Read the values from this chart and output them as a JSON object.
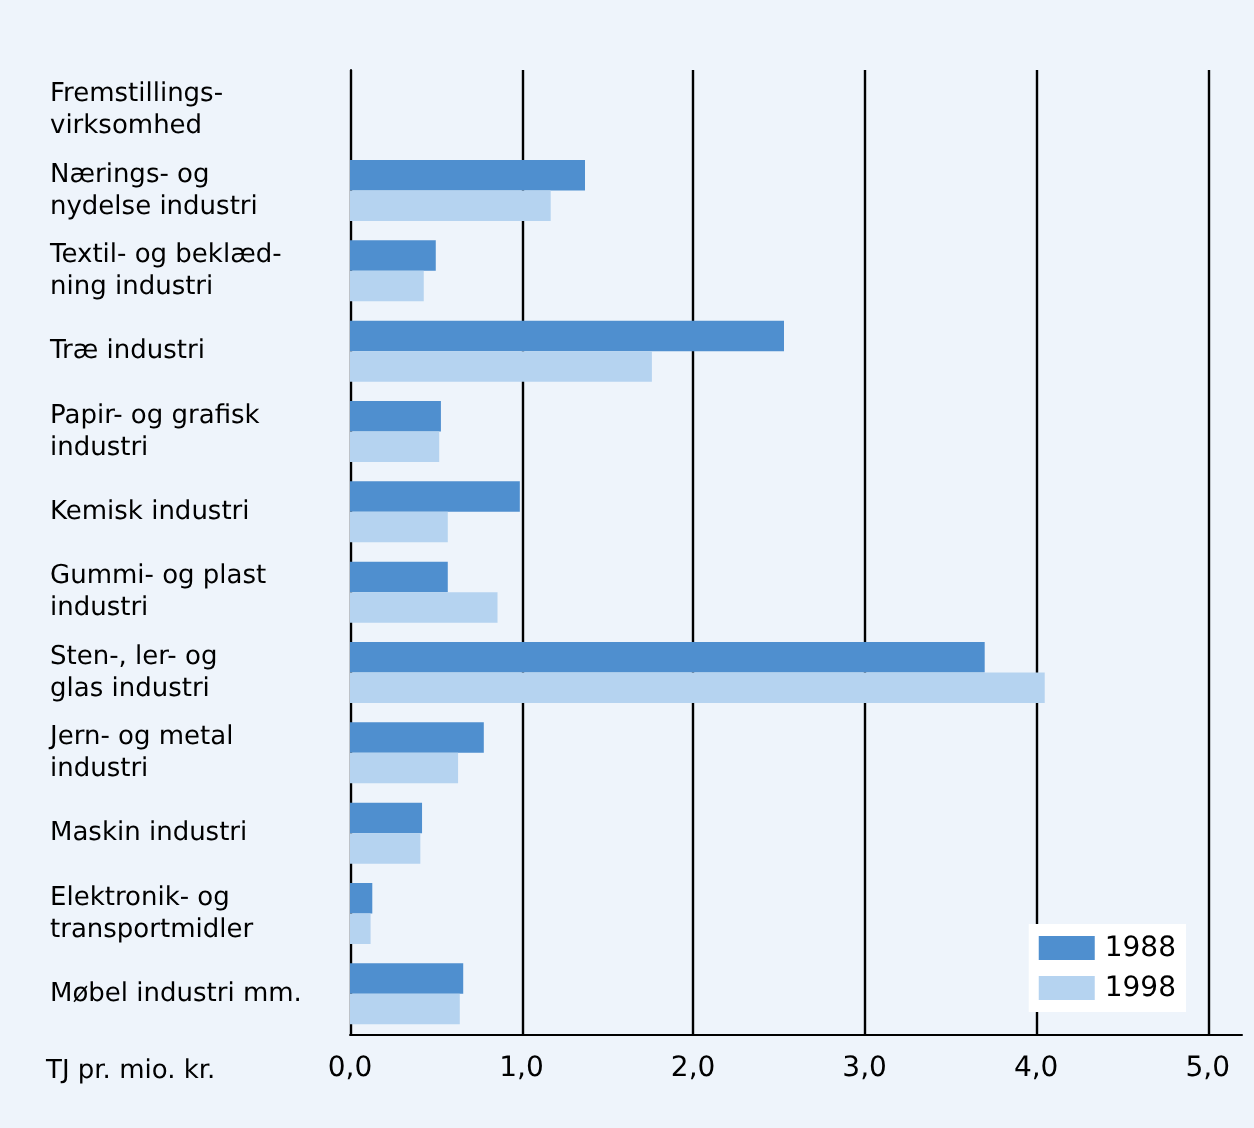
{
  "chart_data": {
    "type": "bar",
    "orientation": "horizontal",
    "xlabel": "TJ pr. mio. kr.",
    "categories": [
      "Fremstillings-\nvirksomhed",
      "Nærings- og\nnydelse industri",
      "Textil- og beklæd-\nning industri",
      "Træ industri",
      "Papir- og grafisk\nindustri",
      "Kemisk industri",
      "Gummi- og plast\nindustri",
      "Sten-, ler- og\nglas industri",
      "Jern- og metal\nindustri",
      "Maskin industri",
      "Elektronik- og\ntransportmidler",
      "Møbel industri mm."
    ],
    "series": [
      {
        "name": "1988",
        "color": "#4f8fcf",
        "values": [
          null,
          1.37,
          0.5,
          2.53,
          0.53,
          0.99,
          0.57,
          3.7,
          0.78,
          0.42,
          0.13,
          0.66
        ]
      },
      {
        "name": "1998",
        "color": "#b5d3f0",
        "values": [
          null,
          1.17,
          0.43,
          1.76,
          0.52,
          0.57,
          0.86,
          4.05,
          0.63,
          0.41,
          0.12,
          0.64
        ]
      }
    ],
    "xlim": [
      0,
      5.2
    ],
    "xticks": [
      {
        "value": 0,
        "label": "0,0"
      },
      {
        "value": 1,
        "label": "1,0"
      },
      {
        "value": 2,
        "label": "2,0"
      },
      {
        "value": 3,
        "label": "3,0"
      },
      {
        "value": 4,
        "label": "4,0"
      },
      {
        "value": 5,
        "label": "5,0"
      }
    ],
    "grid": "x",
    "legend": "bottom right"
  }
}
